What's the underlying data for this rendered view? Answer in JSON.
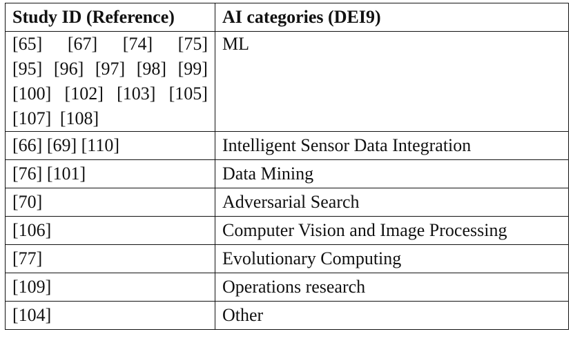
{
  "table": {
    "headers": [
      "Study ID (Reference)",
      "AI categories (DEI9)"
    ],
    "first_row": {
      "id_lines": [
        [
          "[65]",
          "[67]",
          "[74]",
          "[75]"
        ],
        [
          "[95]",
          "[96]",
          "[97]",
          "[98]",
          "[99]"
        ],
        [
          "[100]",
          "[102]",
          "[103]",
          "[105]"
        ],
        [
          "[107]",
          "[108]"
        ]
      ],
      "category": "ML"
    },
    "rows": [
      {
        "ids": "[66] [69] [110]",
        "category": "Intelligent Sensor Data Integration"
      },
      {
        "ids": "[76] [101]",
        "category": "Data Mining"
      },
      {
        "ids": "[70]",
        "category": "Adversarial Search"
      },
      {
        "ids": "[106]",
        "category": "Computer Vision and Image Processing"
      },
      {
        "ids": "[77]",
        "category": "Evolutionary Computing"
      },
      {
        "ids": "[109]",
        "category": "Operations research"
      },
      {
        "ids": "[104]",
        "category": "Other"
      }
    ]
  }
}
